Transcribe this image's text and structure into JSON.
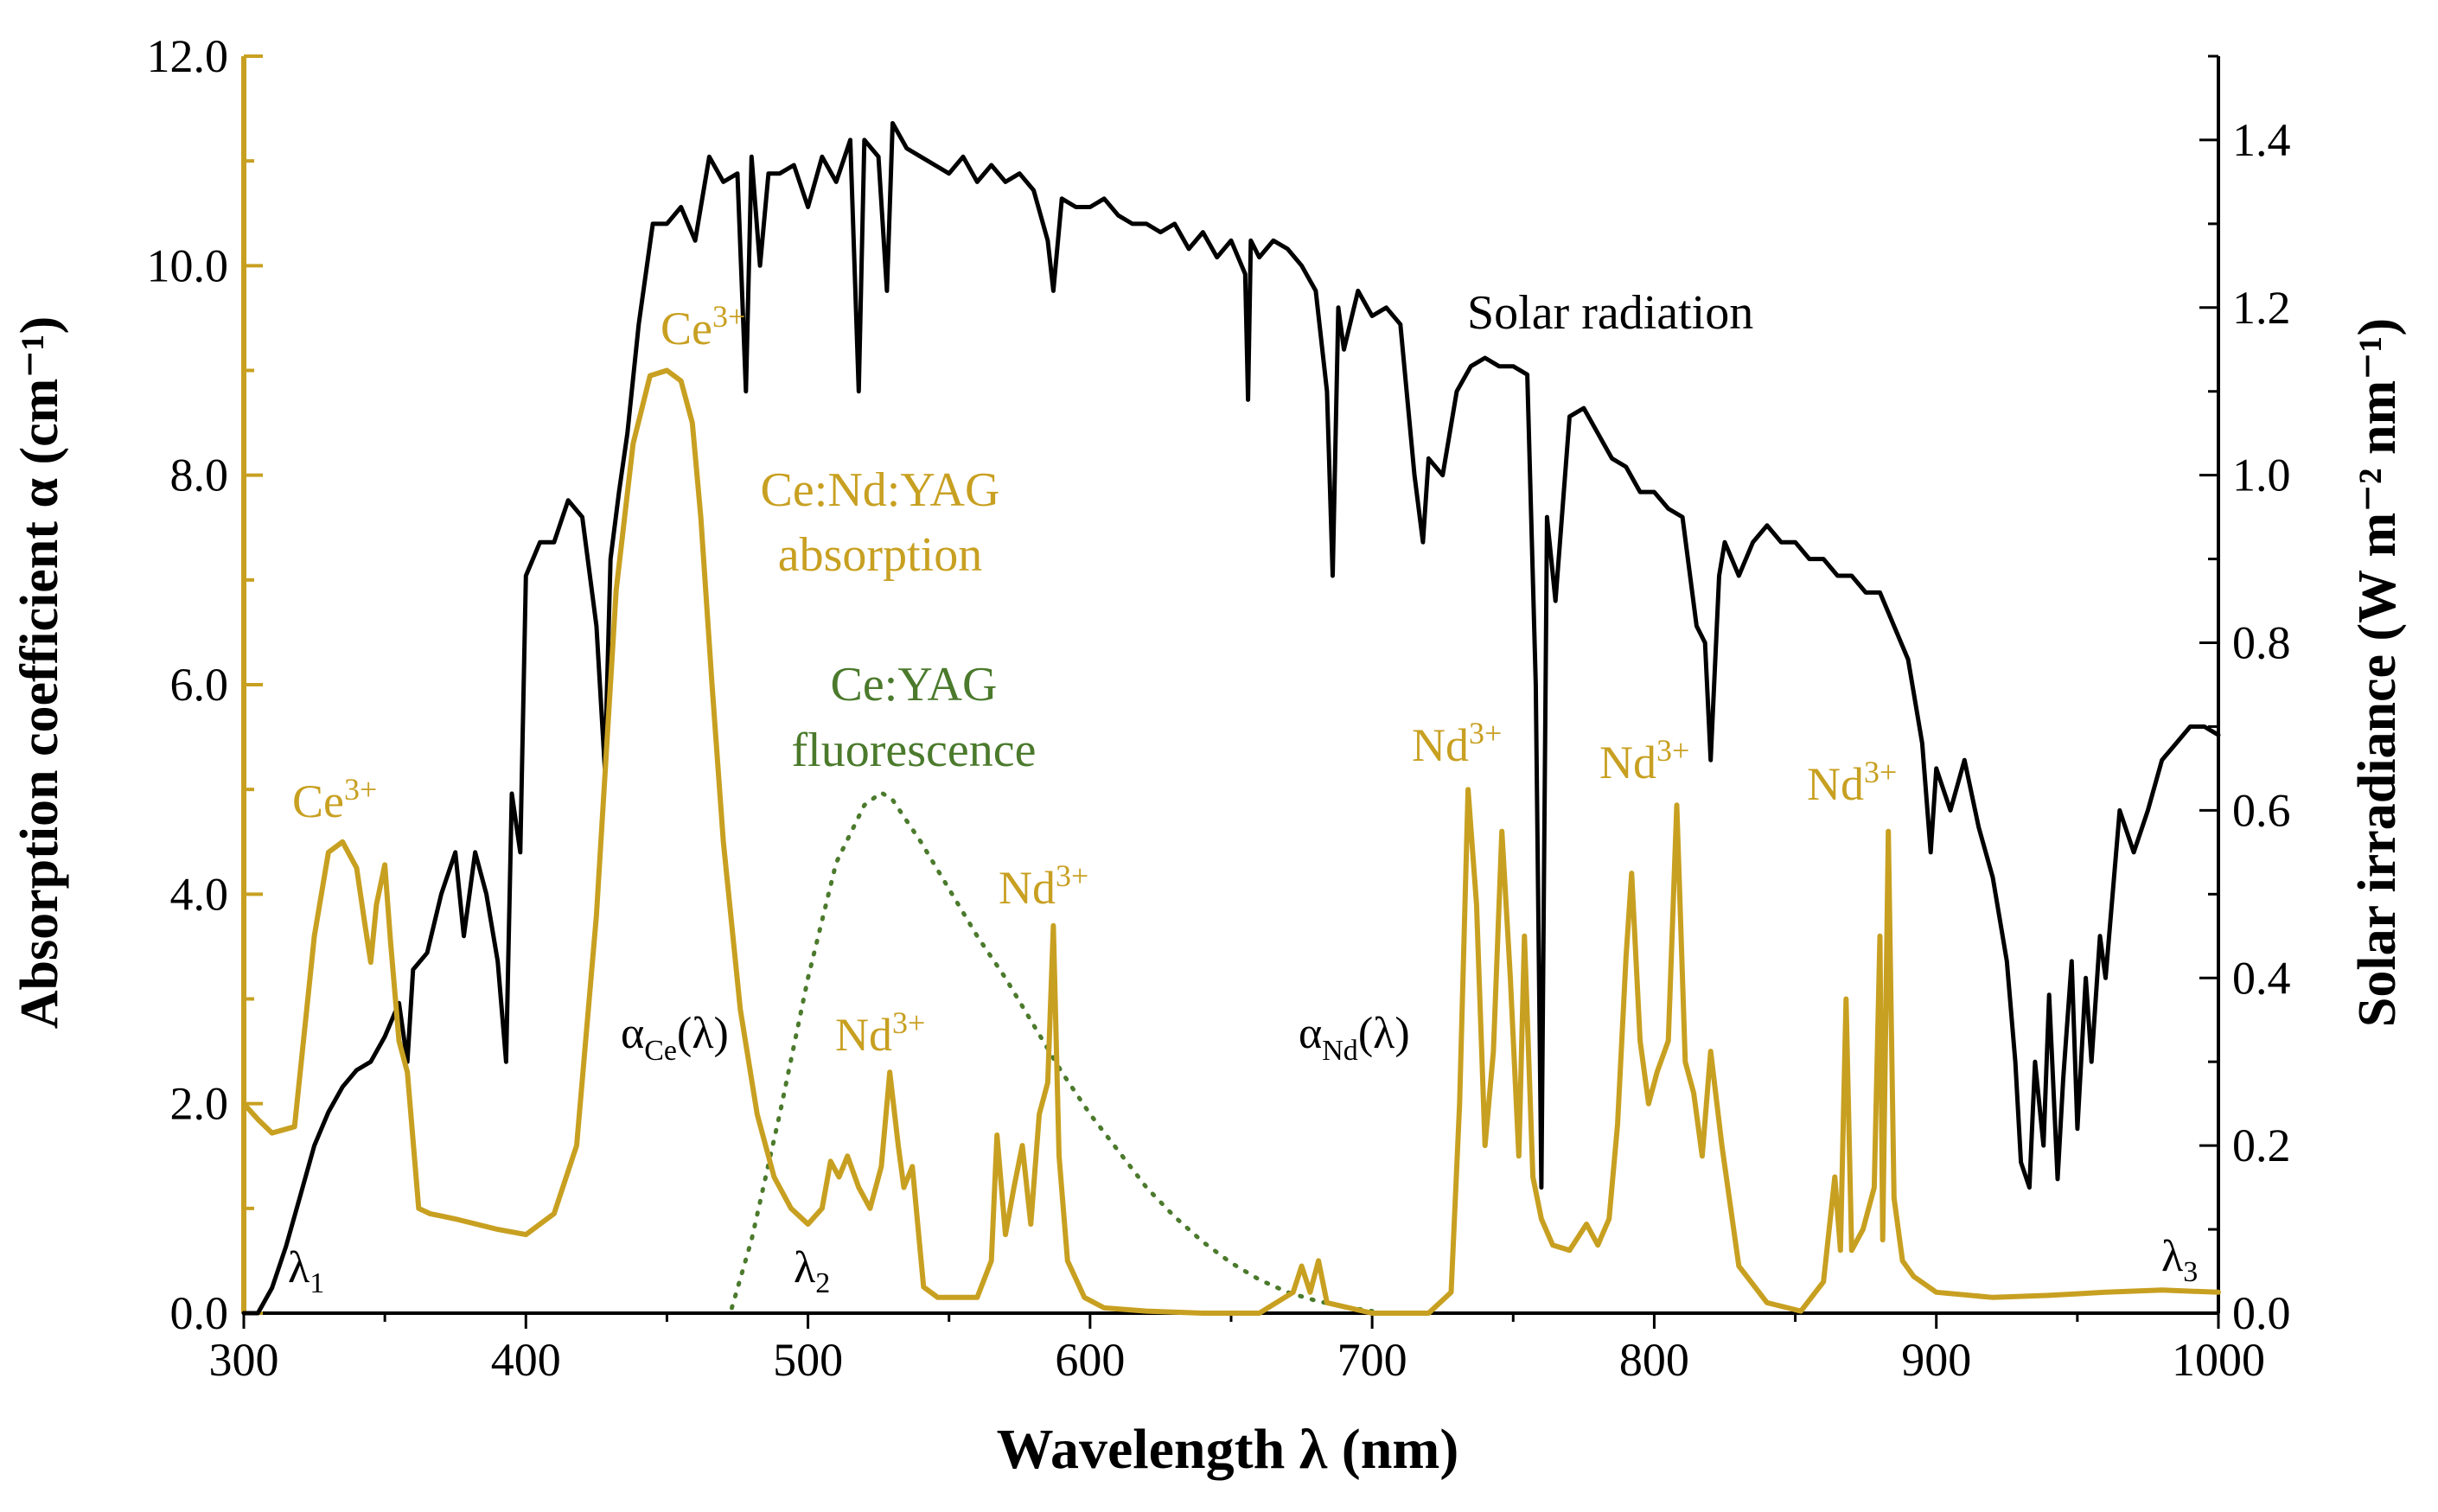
{
  "chart_data": {
    "type": "line",
    "xlabel": "Wavelength λ (nm)",
    "ylabel_left": "Absorption coefficient α (cm⁻¹)",
    "ylabel_right": "Solar irradiance (W m⁻² nm⁻¹)",
    "xlim": [
      300,
      1000
    ],
    "ylim_left": [
      0,
      12
    ],
    "ylim_right": [
      0,
      1.5
    ],
    "x_ticks": [
      "300",
      "400",
      "500",
      "600",
      "700",
      "800",
      "900",
      "1000"
    ],
    "y_left_ticks": [
      "0.0",
      "2.0",
      "4.0",
      "6.0",
      "8.0",
      "10.0",
      "12.0"
    ],
    "y_right_ticks": [
      "0.0",
      "0.2",
      "0.4",
      "0.6",
      "0.8",
      "1.0",
      "1.2",
      "1.4"
    ],
    "grid": false,
    "colors": {
      "absorption": "#c8a021",
      "solar": "#000000",
      "fluorescence": "#4b7a2c"
    },
    "series": [
      {
        "name": "Ce:Nd:YAG absorption",
        "axis": "left",
        "x": [
          300,
          305,
          310,
          318,
          325,
          330,
          335,
          340,
          343,
          345,
          347,
          350,
          352,
          355,
          358,
          362,
          366,
          375,
          390,
          400,
          410,
          418,
          425,
          432,
          438,
          444,
          450,
          455,
          459,
          462,
          466,
          470,
          476,
          482,
          488,
          494,
          500,
          505,
          508,
          511,
          514,
          518,
          522,
          526,
          529,
          532,
          534,
          537,
          541,
          546,
          552,
          560,
          565,
          567,
          570,
          573,
          576,
          579,
          582,
          585,
          587,
          589,
          592,
          598,
          605,
          620,
          640,
          660,
          672,
          675,
          678,
          681,
          684,
          700,
          720,
          728,
          731,
          734,
          737,
          740,
          743,
          746,
          749,
          752,
          754,
          757,
          760,
          764,
          770,
          776,
          780,
          784,
          787,
          790,
          792,
          795,
          798,
          801,
          805,
          808,
          811,
          814,
          817,
          820,
          824,
          830,
          840,
          852,
          860,
          864,
          866,
          868,
          870,
          874,
          878,
          880,
          881,
          883,
          885,
          888,
          892,
          900,
          920,
          940,
          960,
          980,
          1000
        ],
        "y": [
          2.0,
          1.85,
          1.72,
          1.78,
          3.6,
          4.4,
          4.5,
          4.25,
          3.7,
          3.35,
          3.9,
          4.28,
          3.55,
          2.6,
          2.3,
          1.0,
          0.95,
          0.9,
          0.8,
          0.75,
          0.95,
          1.6,
          3.8,
          6.9,
          8.3,
          8.95,
          9.0,
          8.9,
          8.5,
          7.6,
          6.0,
          4.5,
          2.9,
          1.9,
          1.3,
          1.0,
          0.85,
          1.0,
          1.45,
          1.3,
          1.5,
          1.2,
          1.0,
          1.4,
          2.3,
          1.6,
          1.2,
          1.4,
          0.25,
          0.15,
          0.15,
          0.15,
          0.5,
          1.7,
          0.75,
          1.2,
          1.6,
          0.85,
          1.9,
          2.2,
          3.7,
          1.5,
          0.5,
          0.15,
          0.05,
          0.02,
          0.0,
          0.0,
          0.2,
          0.45,
          0.2,
          0.5,
          0.1,
          0.0,
          0.0,
          0.2,
          2.0,
          5.0,
          3.9,
          1.6,
          2.5,
          4.6,
          3.2,
          1.5,
          3.6,
          1.3,
          0.9,
          0.65,
          0.6,
          0.85,
          0.65,
          0.9,
          1.8,
          3.4,
          4.2,
          2.6,
          2.0,
          2.3,
          2.6,
          4.85,
          2.4,
          2.1,
          1.5,
          2.5,
          1.6,
          0.45,
          0.1,
          0.02,
          0.3,
          1.3,
          0.6,
          3.0,
          0.6,
          0.8,
          1.2,
          3.6,
          0.7,
          4.6,
          1.1,
          0.5,
          0.35,
          0.2,
          0.15,
          0.17,
          0.2,
          0.22,
          0.2
        ]
      },
      {
        "name": "Solar radiation",
        "axis": "right",
        "x": [
          300,
          305,
          310,
          315,
          320,
          325,
          330,
          335,
          340,
          345,
          350,
          355,
          358,
          360,
          365,
          370,
          375,
          378,
          382,
          386,
          390,
          393,
          395,
          398,
          400,
          405,
          410,
          415,
          420,
          425,
          428,
          430,
          433,
          436,
          440,
          445,
          450,
          455,
          460,
          465,
          470,
          475,
          478,
          480,
          483,
          486,
          490,
          495,
          500,
          505,
          510,
          515,
          518,
          520,
          525,
          528,
          530,
          535,
          540,
          545,
          550,
          555,
          560,
          565,
          570,
          575,
          580,
          585,
          587,
          590,
          595,
          600,
          605,
          610,
          615,
          620,
          625,
          630,
          635,
          640,
          645,
          650,
          655,
          656,
          657,
          660,
          665,
          670,
          675,
          680,
          684,
          686,
          688,
          690,
          695,
          700,
          705,
          710,
          715,
          718,
          720,
          725,
          730,
          735,
          740,
          745,
          750,
          755,
          758,
          760,
          762,
          765,
          770,
          775,
          780,
          785,
          790,
          795,
          800,
          805,
          810,
          815,
          818,
          820,
          823,
          825,
          830,
          835,
          840,
          845,
          850,
          855,
          860,
          865,
          870,
          875,
          880,
          885,
          890,
          895,
          898,
          900,
          905,
          910,
          915,
          920,
          925,
          928,
          930,
          933,
          935,
          938,
          940,
          943,
          945,
          948,
          950,
          953,
          955,
          958,
          960,
          965,
          970,
          975,
          980,
          985,
          990,
          995,
          1000
        ],
        "y": [
          0.0,
          0.0,
          0.03,
          0.08,
          0.14,
          0.2,
          0.24,
          0.27,
          0.29,
          0.3,
          0.33,
          0.37,
          0.3,
          0.41,
          0.43,
          0.5,
          0.55,
          0.45,
          0.55,
          0.5,
          0.42,
          0.3,
          0.62,
          0.55,
          0.88,
          0.92,
          0.92,
          0.97,
          0.95,
          0.82,
          0.65,
          0.9,
          0.98,
          1.05,
          1.18,
          1.3,
          1.3,
          1.32,
          1.28,
          1.38,
          1.35,
          1.36,
          1.1,
          1.38,
          1.25,
          1.36,
          1.36,
          1.37,
          1.32,
          1.38,
          1.35,
          1.4,
          1.1,
          1.4,
          1.38,
          1.22,
          1.42,
          1.39,
          1.38,
          1.37,
          1.36,
          1.38,
          1.35,
          1.37,
          1.35,
          1.36,
          1.34,
          1.28,
          1.22,
          1.33,
          1.32,
          1.32,
          1.33,
          1.31,
          1.3,
          1.3,
          1.29,
          1.3,
          1.27,
          1.29,
          1.26,
          1.28,
          1.24,
          1.09,
          1.28,
          1.26,
          1.28,
          1.27,
          1.25,
          1.22,
          1.1,
          0.88,
          1.2,
          1.15,
          1.22,
          1.19,
          1.2,
          1.18,
          1.0,
          0.92,
          1.02,
          1.0,
          1.1,
          1.13,
          1.14,
          1.13,
          1.13,
          1.12,
          0.75,
          0.15,
          0.95,
          0.85,
          1.07,
          1.08,
          1.05,
          1.02,
          1.01,
          0.98,
          0.98,
          0.96,
          0.95,
          0.82,
          0.8,
          0.66,
          0.88,
          0.92,
          0.88,
          0.92,
          0.94,
          0.92,
          0.92,
          0.9,
          0.9,
          0.88,
          0.88,
          0.86,
          0.86,
          0.82,
          0.78,
          0.68,
          0.55,
          0.65,
          0.6,
          0.66,
          0.58,
          0.52,
          0.42,
          0.3,
          0.18,
          0.15,
          0.3,
          0.2,
          0.38,
          0.16,
          0.28,
          0.42,
          0.22,
          0.4,
          0.3,
          0.45,
          0.4,
          0.6,
          0.55,
          0.6,
          0.66,
          0.68,
          0.7,
          0.7,
          0.69
        ]
      },
      {
        "name": "Ce:YAG fluorescence",
        "axis": "left",
        "style": "dotted",
        "x": [
          473,
          480,
          490,
          500,
          510,
          520,
          526,
          530,
          540,
          550,
          560,
          570,
          580,
          590,
          600,
          610,
          620,
          630,
          640,
          650,
          660,
          670,
          680,
          690,
          700
        ],
        "y": [
          0.05,
          0.7,
          1.9,
          3.2,
          4.3,
          4.85,
          4.97,
          4.9,
          4.5,
          4.05,
          3.6,
          3.2,
          2.75,
          2.3,
          1.9,
          1.55,
          1.2,
          0.92,
          0.68,
          0.48,
          0.32,
          0.2,
          0.12,
          0.06,
          0.02
        ]
      }
    ],
    "annotations": {
      "ce_label_1": "Ce",
      "ce_label_1_sup": "3+",
      "ce_label_2": "Ce",
      "ce_label_2_sup": "3+",
      "absorption_line1": "Ce:Nd:YAG",
      "absorption_line2": "absorption",
      "fluorescence_line1": "Ce:YAG",
      "fluorescence_line2": "fluorescence",
      "solar_label": "Solar radiation",
      "nd_label": "Nd",
      "nd_sup": "3+",
      "alpha_ce_base": "α",
      "alpha_ce_sub": "Ce",
      "alpha_ce_tail": "(λ)",
      "alpha_nd_base": "α",
      "alpha_nd_sub": "Nd",
      "alpha_nd_tail": "(λ)",
      "lambda_1": "λ",
      "lambda_1_sub": "1",
      "lambda_2": "λ",
      "lambda_2_sub": "2",
      "lambda_3": "λ",
      "lambda_3_sub": "3"
    }
  }
}
